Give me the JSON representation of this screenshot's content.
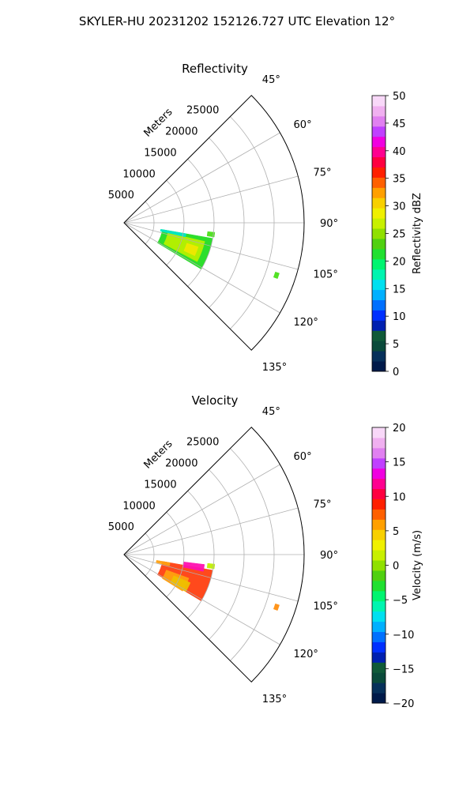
{
  "figure": {
    "title": "SKYLER-HU  20231202  152126.727 UTC Elevation 12°"
  },
  "chart_data": [
    {
      "type": "polar-sector",
      "title": "Reflectivity",
      "radial_label": "Meters",
      "radial_ticks": [
        {
          "value": 5000,
          "label": "5000"
        },
        {
          "value": 10000,
          "label": "10000"
        },
        {
          "value": 15000,
          "label": "15000"
        },
        {
          "value": 20000,
          "label": "20000"
        },
        {
          "value": 25000,
          "label": "25000"
        }
      ],
      "rmax": 30000,
      "azimuth_range": [
        45,
        135
      ],
      "azimuth_ticks": [
        {
          "value": 45,
          "label": "45°"
        },
        {
          "value": 60,
          "label": "60°"
        },
        {
          "value": 75,
          "label": "75°"
        },
        {
          "value": 90,
          "label": "90°"
        },
        {
          "value": 105,
          "label": "105°"
        },
        {
          "value": 120,
          "label": "120°"
        },
        {
          "value": 135,
          "label": "135°"
        }
      ],
      "grid": true,
      "echo_regions": [
        {
          "az": [
            100,
            121
          ],
          "r": [
            6500,
            15000
          ],
          "level": "cyan-green",
          "color": "#22dd22"
        },
        {
          "az": [
            103,
            118
          ],
          "r": [
            7500,
            13800
          ],
          "level": "yellow-green",
          "color": "#b8f000"
        },
        {
          "az": [
            108,
            115
          ],
          "r": [
            11000,
            13000
          ],
          "level": "yellow",
          "color": "#f0e800"
        },
        {
          "az": [
            100,
            103
          ],
          "r": [
            6200,
            10500
          ],
          "level": "cyan",
          "color": "#00e6c8"
        },
        {
          "az": [
            96,
            99
          ],
          "r": [
            14000,
            15200
          ],
          "level": "green",
          "color": "#4ae01a"
        },
        {
          "az": [
            108,
            110
          ],
          "r": [
            26500,
            27200
          ],
          "level": "green",
          "color": "#4ae01a"
        }
      ],
      "colorbar": {
        "label": "Reflectivity dBZ",
        "min": 0,
        "max": 50,
        "ticks": [
          {
            "value": 0,
            "label": "0"
          },
          {
            "value": 5,
            "label": "5"
          },
          {
            "value": 10,
            "label": "10"
          },
          {
            "value": 15,
            "label": "15"
          },
          {
            "value": 20,
            "label": "20"
          },
          {
            "value": 25,
            "label": "25"
          },
          {
            "value": 30,
            "label": "30"
          },
          {
            "value": 35,
            "label": "35"
          },
          {
            "value": 40,
            "label": "40"
          },
          {
            "value": 45,
            "label": "45"
          },
          {
            "value": 50,
            "label": "50"
          }
        ],
        "colors": [
          "#001a4a",
          "#06305a",
          "#0a4a3a",
          "#105a38",
          "#0020b0",
          "#0030ff",
          "#0070ff",
          "#00b0ff",
          "#00e0f0",
          "#00f5b0",
          "#00f570",
          "#20e030",
          "#50d010",
          "#90e000",
          "#c8f000",
          "#f0f000",
          "#f8d000",
          "#ffa000",
          "#ff6000",
          "#ff2000",
          "#ff0040",
          "#ff0090",
          "#f000e0",
          "#c040ff",
          "#e080f0",
          "#f0b0f0",
          "#f8d8f8"
        ]
      }
    },
    {
      "type": "polar-sector",
      "title": "Velocity",
      "radial_label": "Meters",
      "radial_ticks": [
        {
          "value": 5000,
          "label": "5000"
        },
        {
          "value": 10000,
          "label": "10000"
        },
        {
          "value": 15000,
          "label": "15000"
        },
        {
          "value": 20000,
          "label": "20000"
        },
        {
          "value": 25000,
          "label": "25000"
        }
      ],
      "rmax": 30000,
      "azimuth_range": [
        45,
        135
      ],
      "azimuth_ticks": [
        {
          "value": 45,
          "label": "45°"
        },
        {
          "value": 60,
          "label": "60°"
        },
        {
          "value": 75,
          "label": "75°"
        },
        {
          "value": 90,
          "label": "90°"
        },
        {
          "value": 105,
          "label": "105°"
        },
        {
          "value": 120,
          "label": "120°"
        },
        {
          "value": 135,
          "label": "135°"
        }
      ],
      "grid": true,
      "echo_regions": [
        {
          "az": [
            100,
            121
          ],
          "r": [
            6500,
            15000
          ],
          "level": "red-orange",
          "color": "#ff4010"
        },
        {
          "az": [
            110,
            122
          ],
          "r": [
            7500,
            11500
          ],
          "level": "orange",
          "color": "#ffa010"
        },
        {
          "az": [
            113,
            121
          ],
          "r": [
            9000,
            12000
          ],
          "level": "yellow",
          "color": "#f0c000"
        },
        {
          "az": [
            97,
            102
          ],
          "r": [
            10000,
            13500
          ],
          "level": "magenta",
          "color": "#ff10b0"
        },
        {
          "az": [
            100,
            104
          ],
          "r": [
            5500,
            7800
          ],
          "level": "orange",
          "color": "#ffa010"
        },
        {
          "az": [
            96,
            99
          ],
          "r": [
            14000,
            15200
          ],
          "level": "yellow-green",
          "color": "#c0f000"
        },
        {
          "az": [
            108,
            110
          ],
          "r": [
            26500,
            27200
          ],
          "level": "orange",
          "color": "#ff9010"
        }
      ],
      "colorbar": {
        "label": "Velocity (m/s)",
        "min": -20,
        "max": 20,
        "ticks": [
          {
            "value": -20,
            "label": "−20"
          },
          {
            "value": -15,
            "label": "−15"
          },
          {
            "value": -10,
            "label": "−10"
          },
          {
            "value": -5,
            "label": "−5"
          },
          {
            "value": 0,
            "label": "0"
          },
          {
            "value": 5,
            "label": "5"
          },
          {
            "value": 10,
            "label": "10"
          },
          {
            "value": 15,
            "label": "15"
          },
          {
            "value": 20,
            "label": "20"
          }
        ],
        "colors": [
          "#001a4a",
          "#06305a",
          "#0a4a3a",
          "#105a38",
          "#0020b0",
          "#0030ff",
          "#0070ff",
          "#00b0ff",
          "#00e0f0",
          "#00f5b0",
          "#00f570",
          "#20e030",
          "#50d010",
          "#90e000",
          "#c8f000",
          "#f0f000",
          "#f8d000",
          "#ffa000",
          "#ff6000",
          "#ff2000",
          "#ff0040",
          "#ff0090",
          "#f000e0",
          "#c040ff",
          "#e080f0",
          "#f0b0f0",
          "#f8d8f8"
        ]
      }
    }
  ]
}
